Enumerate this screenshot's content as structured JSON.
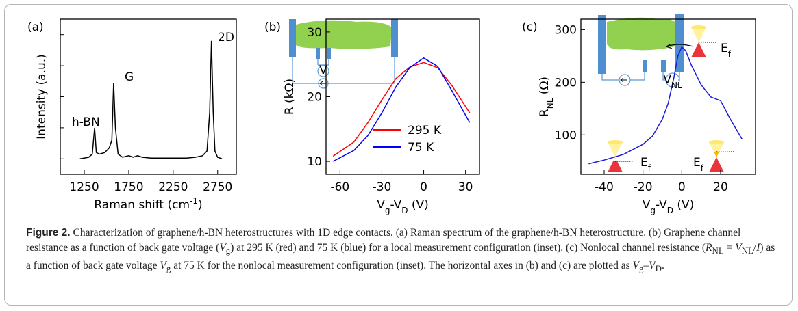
{
  "chart_data": [
    {
      "type": "line",
      "panel_label": "(a)",
      "xlabel": [
        {
          "text": "Raman shift (cm"
        },
        {
          "text": "-1",
          "sup": true
        },
        {
          "text": ")"
        }
      ],
      "ylabel": [
        {
          "text": "Intensity (a.u.)"
        }
      ],
      "x": [
        1200,
        1250,
        1300,
        1340,
        1366,
        1385,
        1420,
        1480,
        1530,
        1560,
        1580,
        1600,
        1630,
        1680,
        1750,
        1800,
        1850,
        1900,
        2000,
        2100,
        2200,
        2300,
        2400,
        2500,
        2580,
        2630,
        2660,
        2680,
        2700,
        2720,
        2750,
        2800
      ],
      "series": [
        {
          "color": "#000000",
          "values": [
            10,
            10.5,
            11,
            13,
            30,
            14,
            13,
            14,
            17,
            22,
            59,
            30,
            13,
            11,
            12,
            11,
            12,
            11,
            10.5,
            10.5,
            10.5,
            10.5,
            10.5,
            11,
            12,
            15,
            40,
            86,
            40,
            15,
            11,
            10
          ]
        }
      ],
      "xlim": [
        980,
        2960
      ],
      "xticks": [
        1250,
        1750,
        2250,
        2750
      ],
      "ylim": [
        0,
        100
      ],
      "yticks": [
        10,
        30,
        50,
        70,
        90
      ],
      "ytick_labels": false,
      "annotations": [
        [
          {
            "text": "h-BN"
          }
        ],
        [
          {
            "text": "G"
          }
        ],
        [
          {
            "text": "2D"
          }
        ]
      ]
    },
    {
      "type": "line",
      "panel_label": "(b)",
      "xlabel": [
        {
          "text": "V"
        },
        {
          "text": "g",
          "sub": true
        },
        {
          "text": "-V"
        },
        {
          "text": "D",
          "sub": true
        },
        {
          "text": " (V)"
        }
      ],
      "ylabel": [
        {
          "text": "R (kΩ)"
        }
      ],
      "x": [
        -65,
        -50,
        -40,
        -30,
        -20,
        -10,
        0,
        10,
        20,
        33
      ],
      "series": [
        {
          "name": "295 K",
          "color": "#ff0000",
          "values": [
            10.8,
            13,
            16,
            19.5,
            22.8,
            24.6,
            25.3,
            24.5,
            21.8,
            17.5
          ]
        },
        {
          "name": "75 K",
          "color": "#0000ff",
          "values": [
            10,
            11.7,
            14,
            17.5,
            21.5,
            24.5,
            26,
            24.7,
            21,
            16
          ]
        }
      ],
      "xlim": [
        -70,
        40
      ],
      "xticks": [
        -60,
        -30,
        0,
        30
      ],
      "ylim": [
        8,
        32
      ],
      "yticks": [
        10,
        20,
        30
      ],
      "annotations": [
        [
          {
            "text": "V"
          }
        ]
      ]
    },
    {
      "type": "line",
      "panel_label": "(c)",
      "xlabel": [
        {
          "text": "V"
        },
        {
          "text": "g",
          "sub": true
        },
        {
          "text": "-V"
        },
        {
          "text": "D",
          "sub": true
        },
        {
          "text": " (V)"
        }
      ],
      "ylabel": [
        {
          "text": "R"
        },
        {
          "text": "NL",
          "sub": true
        },
        {
          "text": " (Ω)"
        }
      ],
      "x": [
        -48,
        -40,
        -30,
        -20,
        -15,
        -10,
        -7,
        -4,
        -2,
        0,
        2,
        5,
        10,
        15,
        20,
        25,
        31
      ],
      "series": [
        {
          "color": "#1a1adc",
          "values": [
            45,
            52,
            63,
            82,
            98,
            130,
            160,
            210,
            250,
            267,
            260,
            232,
            195,
            172,
            165,
            130,
            92
          ]
        }
      ],
      "xlim": [
        -52,
        38
      ],
      "xticks": [
        -40,
        -20,
        0,
        20
      ],
      "ylim": [
        25,
        320
      ],
      "yticks": [
        100,
        200,
        300
      ],
      "annotations": [
        [
          {
            "text": "E"
          },
          {
            "text": "f",
            "sub": true
          }
        ],
        [
          {
            "text": "E"
          },
          {
            "text": "f",
            "sub": true
          }
        ],
        [
          {
            "text": "E"
          },
          {
            "text": "f",
            "sub": true
          }
        ],
        [
          {
            "text": "V"
          },
          {
            "text": "NL",
            "sub": true
          }
        ]
      ]
    }
  ],
  "caption": [
    {
      "text": "Figure 2.",
      "bold": true
    },
    {
      "text": "  Characterization of graphene/h-BN heterostructures with 1D edge contacts. (a) Raman spectrum of the graphene/h-BN heterostructure. (b) Graphene channel resistance as a function of back gate voltage ("
    },
    {
      "text": "V",
      "italic": true
    },
    {
      "text": "g",
      "sub": true
    },
    {
      "text": ") at 295 K (red) and 75 K (blue) for a local measurement configuration (inset). (c) Nonlocal channel resistance ("
    },
    {
      "text": "R",
      "italic": true
    },
    {
      "text": "NL",
      "sub": true
    },
    {
      "text": " = "
    },
    {
      "text": "V",
      "italic": true
    },
    {
      "text": "NL",
      "sub": true
    },
    {
      "text": "/"
    },
    {
      "text": "I",
      "italic": true
    },
    {
      "text": ") as a function of back gate voltage "
    },
    {
      "text": "V",
      "italic": true
    },
    {
      "text": "g",
      "sub": true
    },
    {
      "text": " at 75 K for the nonlocal measurement configuration (inset). The horizontal axes in (b) and (c) are plotted as "
    },
    {
      "text": "V",
      "italic": true
    },
    {
      "text": "g",
      "sub": true
    },
    {
      "text": "–"
    },
    {
      "text": "V",
      "italic": true
    },
    {
      "text": "D",
      "sub": true
    },
    {
      "text": "."
    }
  ]
}
